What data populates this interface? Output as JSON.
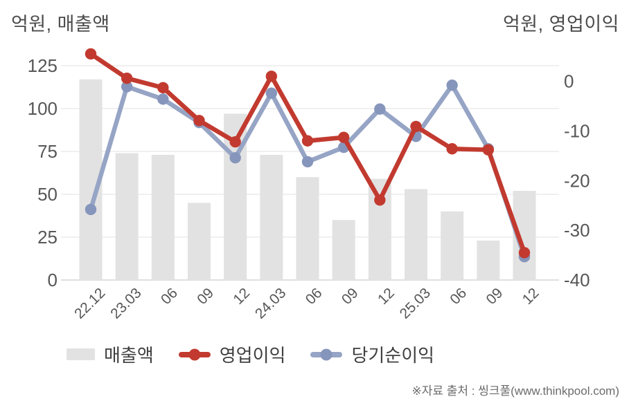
{
  "titles": {
    "left": "억원, 매출액",
    "right": "억원, 영업이익"
  },
  "legend": {
    "items": [
      {
        "label": "매출액",
        "marker": "bar",
        "color": "#e2e2e2",
        "dot_color": "#e2e2e2"
      },
      {
        "label": "영업이익",
        "marker": "line-dot",
        "color": "#c23a2f",
        "dot_color": "#c23a2f"
      },
      {
        "label": "당기순이익",
        "marker": "line-dot",
        "color": "#96a4c5",
        "dot_color": "#8695bb"
      }
    ]
  },
  "footer": {
    "source_note": "※자료 출처 : 씽크풀(www.thinkpool.com)"
  },
  "chart_data": {
    "type": "bar+line",
    "title": "",
    "categories": [
      "22.12",
      "23.03",
      "06",
      "09",
      "12",
      "24.03",
      "06",
      "09",
      "12",
      "25.03",
      "06",
      "09",
      "12"
    ],
    "series": [
      {
        "name": "매출액",
        "type": "bar",
        "axis": "left",
        "color": "#e2e2e2",
        "values": [
          117,
          74,
          73,
          45,
          97,
          73,
          60,
          35,
          59,
          53,
          40,
          23,
          52
        ]
      },
      {
        "name": "영업이익",
        "type": "line",
        "axis": "right",
        "color": "#c23a2f",
        "dot_color": "#c23a2f",
        "values": [
          5.5,
          0.6,
          -1.3,
          -7.9,
          -12.2,
          1.0,
          -12.0,
          -11.3,
          -23.9,
          -9.1,
          -13.6,
          -13.8,
          -34.5
        ]
      },
      {
        "name": "당기순이익",
        "type": "line",
        "axis": "right",
        "color": "#96a4c5",
        "dot_color": "#8695bb",
        "values": [
          -25.8,
          -1.1,
          -3.6,
          -8.3,
          -15.4,
          -2.4,
          -16.2,
          -13.3,
          -5.6,
          -11.1,
          -0.8,
          -13.6,
          -35.3
        ]
      }
    ],
    "left_axis": {
      "title": "억원, 매출액",
      "ticks": [
        0,
        25,
        50,
        75,
        100,
        125
      ],
      "range": [
        0,
        133
      ]
    },
    "right_axis": {
      "title": "억원, 영업이익",
      "ticks": [
        0,
        -10,
        -20,
        -30,
        -40
      ],
      "range": [
        -40,
        5.9
      ]
    },
    "grid": true,
    "legend_position": "bottom",
    "colors": {
      "background": "#ffffff",
      "grid": "#e8e8e8",
      "axis_line": "#cccccc",
      "tick_text": "#565656",
      "x_label_text": "#565656",
      "title_text": "#4b4b4b",
      "legend_text": "#3f3f3f",
      "footer_text": "#6b6b6b"
    }
  }
}
